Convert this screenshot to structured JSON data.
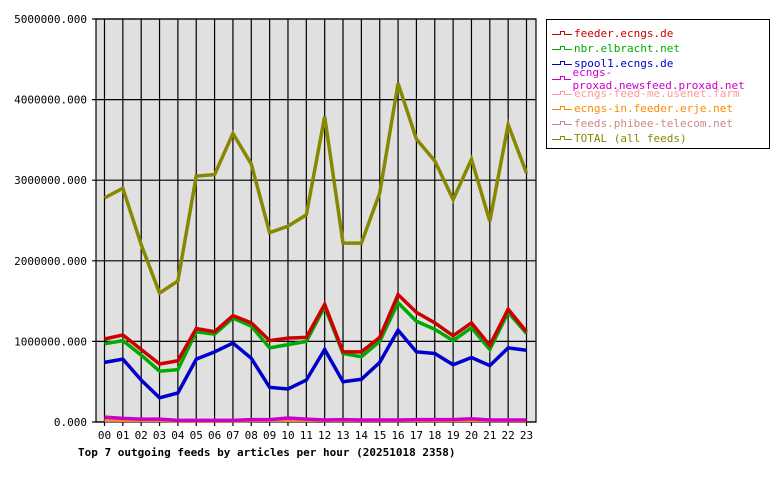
{
  "chart_data": {
    "type": "line",
    "title": "Top 7 outgoing feeds by articles per hour (20251018 2358)",
    "xlabel": "",
    "ylabel": "",
    "ylim": [
      0,
      5000000
    ],
    "yticks": [
      "0.000",
      "1000000.000",
      "2000000.000",
      "3000000.000",
      "4000000.000",
      "5000000.000"
    ],
    "categories": [
      "00",
      "01",
      "02",
      "03",
      "04",
      "05",
      "06",
      "07",
      "08",
      "09",
      "10",
      "11",
      "12",
      "13",
      "14",
      "15",
      "16",
      "17",
      "18",
      "19",
      "20",
      "21",
      "22",
      "23"
    ],
    "grid": true,
    "legend_position": "right-top",
    "series": [
      {
        "name": "feeder.ecngs.de",
        "color": "#cc0000",
        "values": [
          1030000,
          1080000,
          900000,
          720000,
          760000,
          1160000,
          1120000,
          1320000,
          1230000,
          1010000,
          1040000,
          1050000,
          1460000,
          870000,
          870000,
          1050000,
          1580000,
          1360000,
          1230000,
          1070000,
          1230000,
          950000,
          1400000,
          1120000
        ]
      },
      {
        "name": "nbr.elbracht.net",
        "color": "#00aa00",
        "values": [
          970000,
          1010000,
          830000,
          630000,
          650000,
          1120000,
          1090000,
          1290000,
          1190000,
          920000,
          960000,
          1000000,
          1430000,
          850000,
          810000,
          1000000,
          1480000,
          1250000,
          1150000,
          1010000,
          1170000,
          900000,
          1360000,
          1100000
        ]
      },
      {
        "name": "spool1.ecngs.de",
        "color": "#0000cc",
        "values": [
          740000,
          780000,
          520000,
          300000,
          360000,
          780000,
          870000,
          980000,
          790000,
          430000,
          410000,
          520000,
          900000,
          500000,
          530000,
          740000,
          1140000,
          870000,
          850000,
          710000,
          800000,
          700000,
          920000,
          890000
        ]
      },
      {
        "name": "ecngs-proxad.newsfeed.proxad.net",
        "color": "#cc00cc",
        "values": [
          60000,
          45000,
          35000,
          35000,
          20000,
          20000,
          20000,
          20000,
          30000,
          30000,
          50000,
          35000,
          25000,
          30000,
          25000,
          25000,
          25000,
          30000,
          30000,
          30000,
          40000,
          25000,
          25000,
          25000
        ]
      },
      {
        "name": "ecngs-feed-me.usenet.farm",
        "color": "#ff9999",
        "values": [
          20000,
          20000,
          20000,
          20000,
          20000,
          20000,
          20000,
          20000,
          20000,
          20000,
          20000,
          20000,
          20000,
          20000,
          20000,
          20000,
          20000,
          20000,
          20000,
          20000,
          20000,
          20000,
          20000,
          20000
        ]
      },
      {
        "name": "ecngs-in.feeder.erje.net",
        "color": "#ff8800",
        "values": [
          35000,
          30000,
          25000,
          25000,
          15000,
          15000,
          15000,
          15000,
          20000,
          25000,
          35000,
          25000,
          20000,
          20000,
          20000,
          20000,
          20000,
          20000,
          20000,
          20000,
          25000,
          20000,
          20000,
          20000
        ]
      },
      {
        "name": "feeds.phibee-telecom.net",
        "color": "#cc8888",
        "values": [
          20000,
          20000,
          20000,
          20000,
          15000,
          15000,
          15000,
          15000,
          20000,
          20000,
          20000,
          20000,
          20000,
          20000,
          20000,
          20000,
          20000,
          20000,
          20000,
          20000,
          20000,
          20000,
          20000,
          20000
        ]
      },
      {
        "name": "TOTAL (all feeds)",
        "color": "#888800",
        "values": [
          2780000,
          2900000,
          2200000,
          1600000,
          1750000,
          3050000,
          3070000,
          3580000,
          3200000,
          2350000,
          2430000,
          2570000,
          3790000,
          2220000,
          2220000,
          2840000,
          4200000,
          3510000,
          3240000,
          2760000,
          3260000,
          2490000,
          3690000,
          3090000
        ]
      }
    ]
  },
  "colors": {
    "plot_background": "#e0e0e0",
    "grid": "#000000"
  }
}
